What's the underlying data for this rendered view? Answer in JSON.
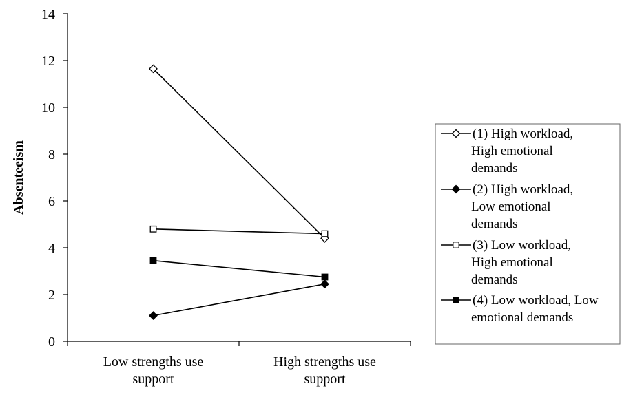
{
  "chart_data": {
    "type": "line",
    "title": "",
    "xlabel": "",
    "ylabel": "Absenteeism",
    "categories": [
      "Low strengths use support",
      "High strengths use support"
    ],
    "category_lines": [
      [
        "Low strengths use",
        "support"
      ],
      [
        "High strengths use",
        "support"
      ]
    ],
    "ylim": [
      0,
      14
    ],
    "yticks": [
      0,
      2,
      4,
      6,
      8,
      10,
      12,
      14
    ],
    "grid": false,
    "legend": "right",
    "series": [
      {
        "name": "(1) High workload, High emotional demands",
        "legend_lines": [
          "(1) High workload,",
          "High emotional",
          "demands"
        ],
        "marker": "diamond-open",
        "values": [
          11.65,
          4.4
        ]
      },
      {
        "name": "(2) High workload, Low emotional demands",
        "legend_lines": [
          "(2) High workload,",
          "Low emotional",
          "demands"
        ],
        "marker": "diamond-filled",
        "values": [
          1.1,
          2.45
        ]
      },
      {
        "name": "(3) Low workload, High emotional demands",
        "legend_lines": [
          "(3) Low workload,",
          "High emotional",
          "demands"
        ],
        "marker": "square-open",
        "values": [
          4.8,
          4.6
        ]
      },
      {
        "name": "(4) Low workload, Low emotional demands",
        "legend_lines": [
          "(4) Low workload, Low",
          "emotional demands"
        ],
        "marker": "square-filled",
        "values": [
          3.45,
          2.75
        ]
      }
    ]
  }
}
